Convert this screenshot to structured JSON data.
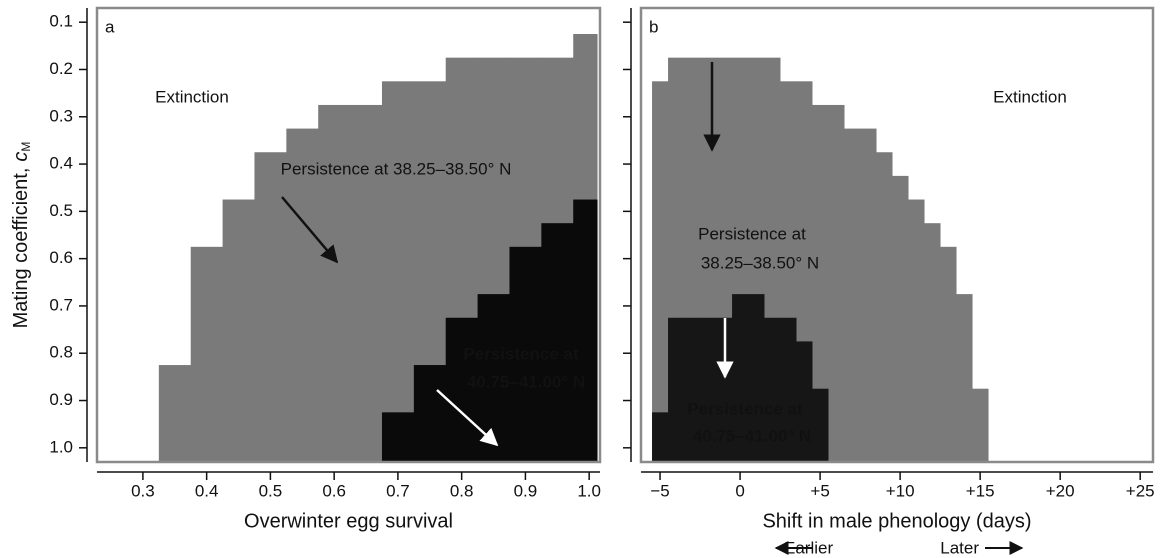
{
  "chart_data": [
    {
      "type": "step",
      "title": "a",
      "xlabel": "Overwinter egg survival",
      "ylabel": "Mating coefficient,",
      "ylabel_symbol": "c",
      "ylabel_subscript": "M",
      "xlim": [
        0.228,
        1.017
      ],
      "ylim": [
        0.07,
        1.03
      ],
      "y_inverted": true,
      "xticks": [
        0.3,
        0.4,
        0.5,
        0.6,
        0.7,
        0.8,
        0.9,
        {
          "value": 1,
          "label": "1.0"
        }
      ],
      "yticks": [
        0.1,
        0.2,
        0.3,
        0.4,
        0.5,
        0.6,
        0.7,
        0.8,
        0.9,
        {
          "value": 1,
          "label": "1.0"
        }
      ],
      "ytick_labels": true,
      "series": [
        {
          "color": "#7a7a7a",
          "bins": [
            0.325,
            0.375,
            0.425,
            0.475,
            0.525,
            0.575,
            0.625,
            0.675,
            0.725,
            0.775,
            0.825,
            0.875,
            0.925,
            0.975,
            1.0125
          ],
          "values": [
            0.825,
            0.575,
            0.475,
            0.375,
            0.325,
            0.275,
            0.275,
            0.225,
            0.225,
            0.175,
            0.175,
            0.175,
            0.175,
            0.125
          ]
        },
        {
          "color": "#0a0a0a",
          "bins": [
            0.675,
            0.725,
            0.775,
            0.825,
            0.875,
            0.925,
            0.975,
            1.0125
          ],
          "values": [
            0.925,
            0.825,
            0.725,
            0.675,
            0.575,
            0.525,
            0.475
          ]
        }
      ],
      "annotations": [
        "Extinction",
        "Persistence at 38.25–38.50° N",
        "Persistence at",
        "40.75–41.00° N"
      ]
    },
    {
      "type": "step",
      "title": "b",
      "xlabel": "Shift in male phenology (days)",
      "xlabel_left": "Earlier",
      "xlabel_right": "Later",
      "xlim": [
        -6.19,
        25.8
      ],
      "ylim": [
        0.07,
        1.03
      ],
      "y_inverted": true,
      "xticks": [
        {
          "value": -5,
          "label": "−5"
        },
        0,
        {
          "value": 5,
          "label": "+5"
        },
        {
          "value": 10,
          "label": "+10"
        },
        {
          "value": 15,
          "label": "+15"
        },
        {
          "value": 20,
          "label": "+20"
        },
        {
          "value": 25,
          "label": "+25"
        }
      ],
      "yticks": [
        0.1,
        0.2,
        0.3,
        0.4,
        0.5,
        0.6,
        0.7,
        0.8,
        0.9,
        1
      ],
      "ytick_labels": false,
      "series": [
        {
          "color": "#7a7a7a",
          "bins": [
            -5.5,
            -4.5,
            2.5,
            3.5,
            4.5,
            5.5,
            6.5,
            7.5,
            8.5,
            9.5,
            10.5,
            11.5,
            12.5,
            13.5,
            14.5,
            15.5
          ],
          "values": [
            0.225,
            0.175,
            0.225,
            0.225,
            0.275,
            0.275,
            0.325,
            0.325,
            0.375,
            0.425,
            0.475,
            0.525,
            0.575,
            0.675,
            0.875
          ]
        },
        {
          "color": "#161616",
          "bins": [
            -5.5,
            -4.5,
            -3.5,
            -2.5,
            -1.5,
            -0.5,
            0.5,
            1.5,
            2.5,
            3.5,
            4.5,
            5.5
          ],
          "values": [
            0.925,
            0.725,
            0.725,
            0.725,
            0.725,
            0.675,
            0.675,
            0.725,
            0.725,
            0.775,
            0.875
          ]
        }
      ],
      "annotations": [
        "Extinction",
        "Persistence at",
        "38.25–38.50° N",
        "Persistence at",
        "40.75–41.00° N"
      ]
    }
  ]
}
